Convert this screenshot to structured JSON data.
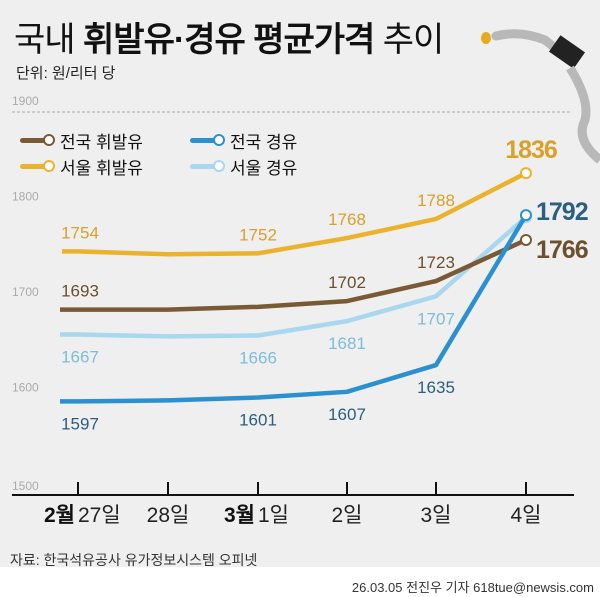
{
  "header": {
    "title_pre": "국내 ",
    "title_bold": "휘발유·경유 평균가격",
    "title_post": " 추이",
    "unit": "단위: 원/리터 당"
  },
  "footer": {
    "source": "자료: 한국석유공사 유가정보시스템 오피넷",
    "credit": "26.03.05 전진우 기자 618tue@newsis.com"
  },
  "chart_data": {
    "type": "line",
    "title": "국내 휘발유·경유 평균가격 추이",
    "ylabel": "원/리터 당",
    "ylim": [
      1500,
      1900
    ],
    "yticks": [
      "1500",
      "1600",
      "1700",
      "1800",
      "1900"
    ],
    "categories": [
      "27일",
      "28일",
      "1일",
      "2일",
      "3일",
      "4일"
    ],
    "month_labels": [
      "2월",
      "",
      "3월",
      "",
      "",
      ""
    ],
    "legend": "top-left",
    "series": [
      {
        "name": "전국 휘발유",
        "color": "#7a5a34",
        "label_color": "#6b4f2e",
        "values": [
          1693,
          1693,
          1696,
          1702,
          1723,
          1766
        ],
        "labels": [
          "1693",
          "",
          "",
          "1702",
          "1723",
          "1766"
        ],
        "pos": "above"
      },
      {
        "name": "서울 휘발유",
        "color": "#ebb22e",
        "label_color": "#d9a02a",
        "values": [
          1754,
          1751,
          1752,
          1768,
          1788,
          1836
        ],
        "labels": [
          "1754",
          "",
          "1752",
          "1768",
          "1788",
          "1836"
        ],
        "pos": "above"
      },
      {
        "name": "전국 경유",
        "color": "#2b90d0",
        "label_color": "#2a5f80",
        "values": [
          1597,
          1598,
          1601,
          1607,
          1635,
          1792
        ],
        "labels": [
          "1597",
          "",
          "1601",
          "1607",
          "1635",
          "1792"
        ],
        "pos": "below"
      },
      {
        "name": "서울 경유",
        "color": "#a8d7ee",
        "label_color": "#7cbcdc",
        "values": [
          1667,
          1665,
          1666,
          1681,
          1707,
          1790
        ],
        "labels": [
          "1667",
          "",
          "1666",
          "1681",
          "1707",
          ""
        ],
        "pos": "below"
      }
    ]
  }
}
